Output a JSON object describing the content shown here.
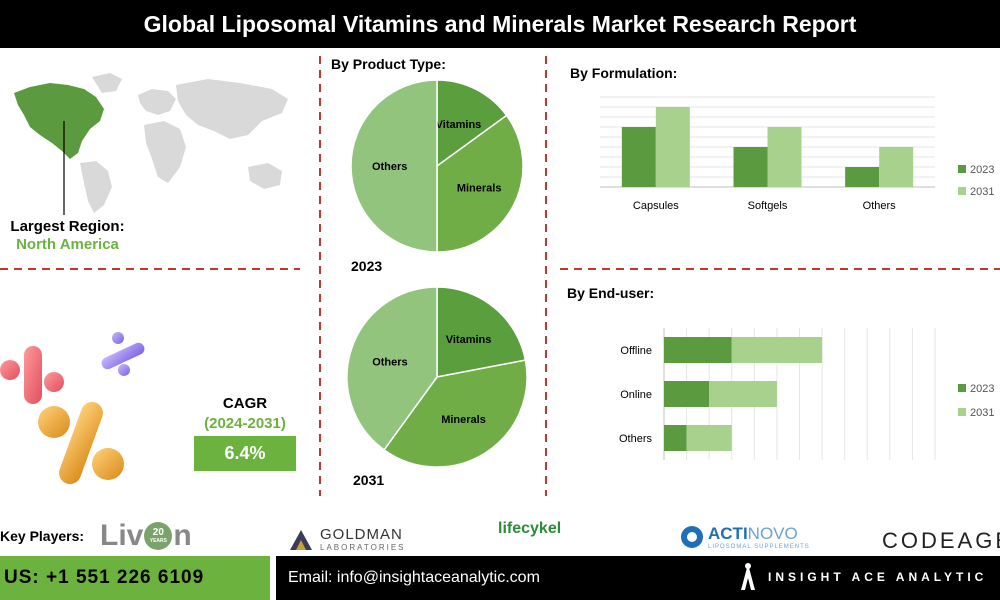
{
  "title": "Global Liposomal Vitamins and Minerals Market Research Report",
  "colors": {
    "dark_green": "#5b9a3e",
    "light_green": "#a9d18e",
    "pie_dark": "#5a9e3d",
    "pie_mid": "#70ad47",
    "pie_light": "#93c47d",
    "red_dash": "#c0392b",
    "accent_green": "#6bb23f"
  },
  "region": {
    "label": "Largest Region:",
    "value": "North America"
  },
  "cagr": {
    "label": "CAGR",
    "period": "(2024-2031)",
    "value": "6.4%"
  },
  "key_players": {
    "label": "Key Players:",
    "logos": [
      "Liv",
      "n",
      "20",
      "YEARS",
      "GOLDMAN",
      "LABORATORIES",
      "lifecykel",
      "ACTI",
      "NOVO",
      "LIPOSOMAL SUPPLEMENTS",
      "CODEAGE"
    ]
  },
  "contact": {
    "phone": "US: +1 551 226 6109",
    "email": "Email: info@insightaceanalytic.com",
    "brand": "INSIGHT ACE ANALYTIC"
  },
  "icons": {
    "world_map": "world-map-icon",
    "pills": "pills-icon",
    "brand_logo": "insight-ace-logo-icon"
  },
  "chart_data": [
    {
      "type": "pie",
      "title": "By Product Type:",
      "year_label": "2023",
      "slices": [
        {
          "label": "Vitamins",
          "value": 15
        },
        {
          "label": "Minerals",
          "value": 35
        },
        {
          "label": "Others",
          "value": 50
        }
      ]
    },
    {
      "type": "pie",
      "title": "",
      "year_label": "2031",
      "slices": [
        {
          "label": "Vitamins",
          "value": 22
        },
        {
          "label": "Minerals",
          "value": 38
        },
        {
          "label": "Others",
          "value": 40
        }
      ]
    },
    {
      "type": "bar",
      "title": "By  Formulation:",
      "categories": [
        "Capsules",
        "Softgels",
        "Others"
      ],
      "series": [
        {
          "name": "2023",
          "values": [
            3,
            2,
            1
          ]
        },
        {
          "name": "2031",
          "values": [
            4,
            3,
            2
          ]
        }
      ],
      "ylim": [
        0,
        4.5
      ],
      "grid": true,
      "legend": "right"
    },
    {
      "type": "bar",
      "orientation": "horizontal",
      "stacked": true,
      "title": "By End-user:",
      "categories": [
        "Offline",
        "Online",
        "Others"
      ],
      "series": [
        {
          "name": "2023",
          "values": [
            3,
            2,
            1
          ]
        },
        {
          "name": "2031",
          "values": [
            4,
            3,
            2
          ]
        }
      ],
      "xlim": [
        0,
        12
      ],
      "grid": true,
      "legend": "right"
    }
  ]
}
